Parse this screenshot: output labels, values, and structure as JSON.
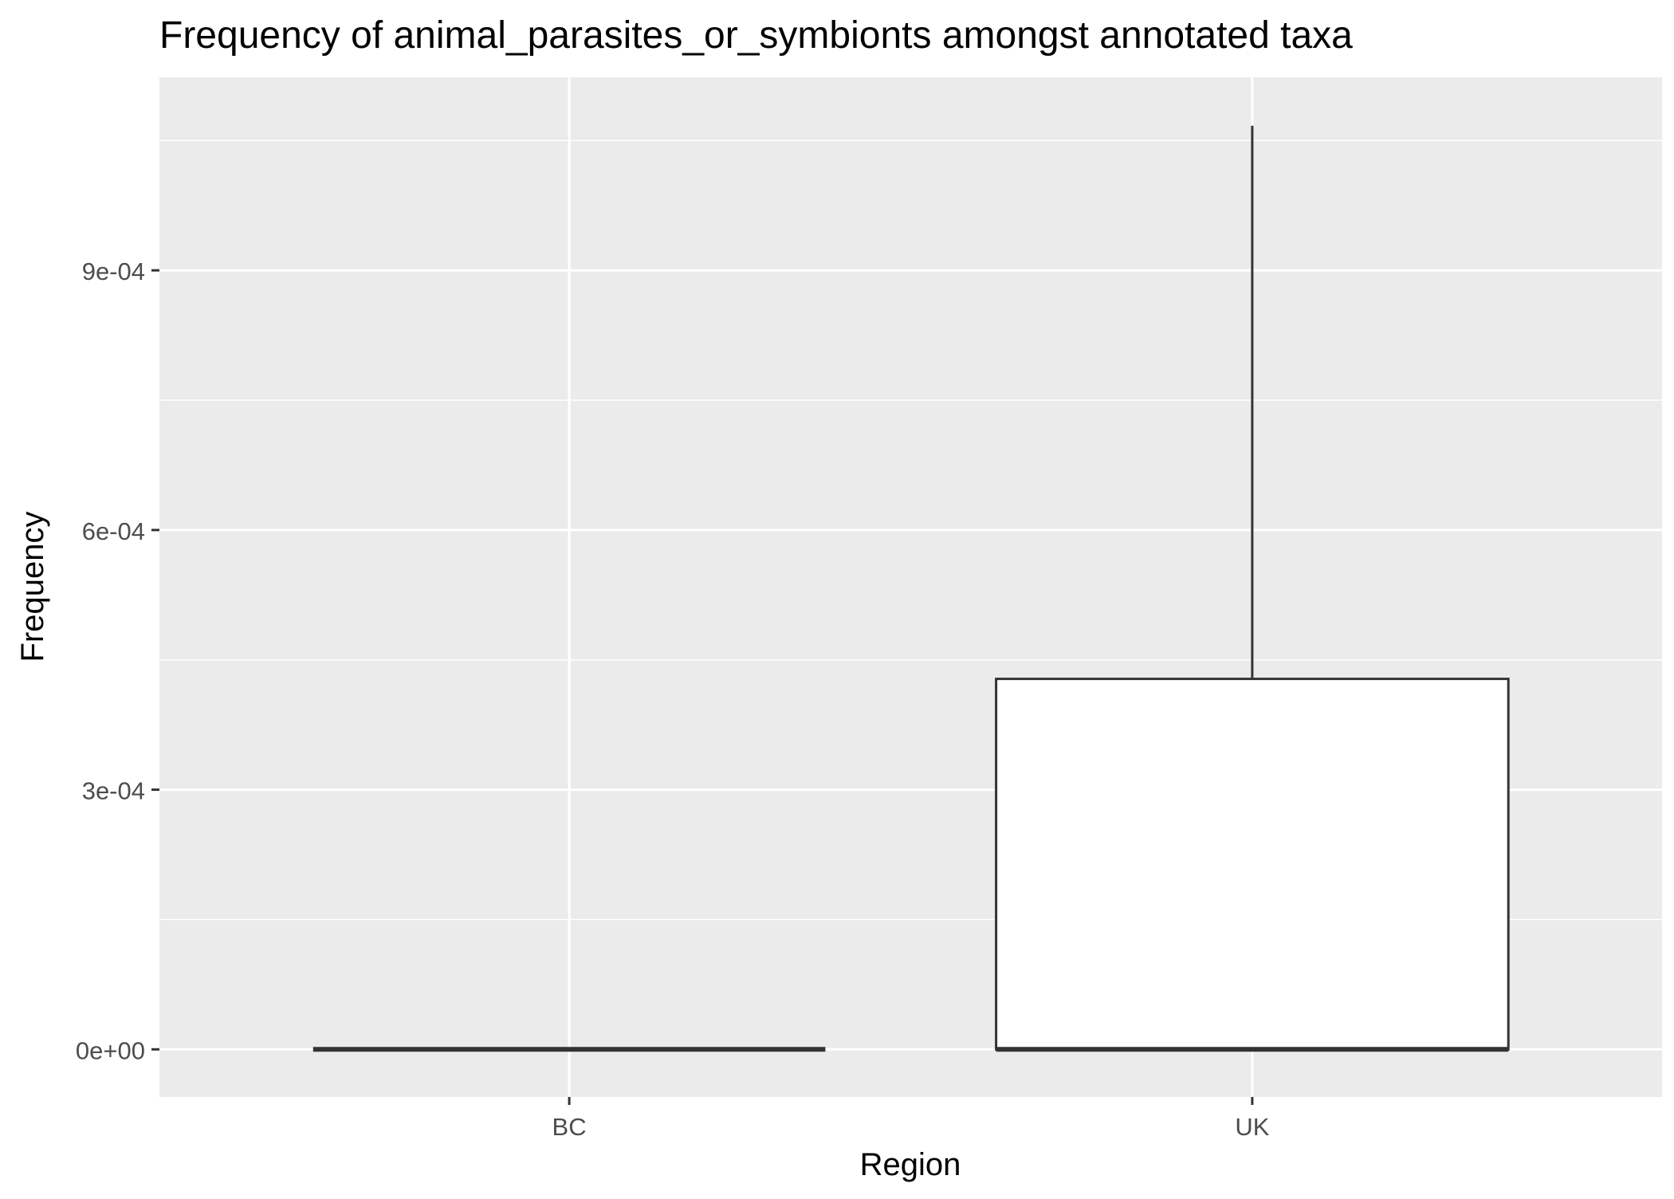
{
  "chart_data": {
    "type": "boxplot",
    "title": "Frequency of animal_parasites_or_symbionts amongst annotated taxa",
    "xlabel": "Region",
    "ylabel": "Frequency",
    "categories": [
      "BC",
      "UK"
    ],
    "yticks": [
      {
        "value": 0,
        "label": "0e+00"
      },
      {
        "value": 0.0003,
        "label": "3e-04"
      },
      {
        "value": 0.0006,
        "label": "6e-04"
      },
      {
        "value": 0.0009,
        "label": "9e-04"
      }
    ],
    "ylim": [
      -5.5e-05,
      0.001123
    ],
    "grid": true,
    "boxes": [
      {
        "category": "BC",
        "min": 0,
        "q1": 0,
        "median": 0,
        "q3": 0,
        "max": 0
      },
      {
        "category": "UK",
        "min": 0,
        "q1": 0,
        "median": 0,
        "q3": 0.000428,
        "max": 0.001067
      }
    ],
    "colors": {
      "panel_background": "#ebebeb",
      "grid_major": "#ffffff",
      "grid_minor": "#ffffff",
      "box_fill": "#ffffff",
      "box_stroke": "#333333",
      "axis_text": "#4d4d4d",
      "title_text": "#000000"
    }
  }
}
